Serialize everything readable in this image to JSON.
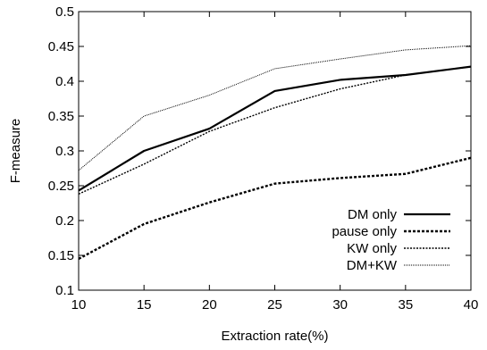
{
  "chart_data": {
    "type": "line",
    "title": "",
    "xlabel": "Extraction rate(%)",
    "ylabel": "F-measure",
    "x": [
      10,
      15,
      20,
      25,
      30,
      35,
      40
    ],
    "xlim": [
      10,
      40
    ],
    "ylim": [
      0.1,
      0.5
    ],
    "xticks": [
      "10",
      "15",
      "20",
      "25",
      "30",
      "35",
      "40"
    ],
    "yticks": [
      "0.1",
      "0.15",
      "0.2",
      "0.25",
      "0.3",
      "0.35",
      "0.4",
      "0.45",
      "0.5"
    ],
    "grid": false,
    "legend_position": "bottom-right",
    "series": [
      {
        "name": "DM only",
        "style": "solid-thick",
        "color": "#000000",
        "values": [
          0.243,
          0.3,
          0.332,
          0.386,
          0.402,
          0.409,
          0.421
        ]
      },
      {
        "name": "pause only",
        "style": "dashed-thick",
        "color": "#000000",
        "values": [
          0.145,
          0.195,
          0.226,
          0.253,
          0.261,
          0.267,
          0.29
        ]
      },
      {
        "name": "KW only",
        "style": "dotted",
        "color": "#000000",
        "values": [
          0.238,
          0.281,
          0.328,
          0.362,
          0.389,
          0.409,
          0.421
        ]
      },
      {
        "name": "DM+KW",
        "style": "dotted-fine",
        "color": "#000000",
        "values": [
          0.272,
          0.35,
          0.38,
          0.418,
          0.432,
          0.445,
          0.451
        ]
      }
    ]
  }
}
